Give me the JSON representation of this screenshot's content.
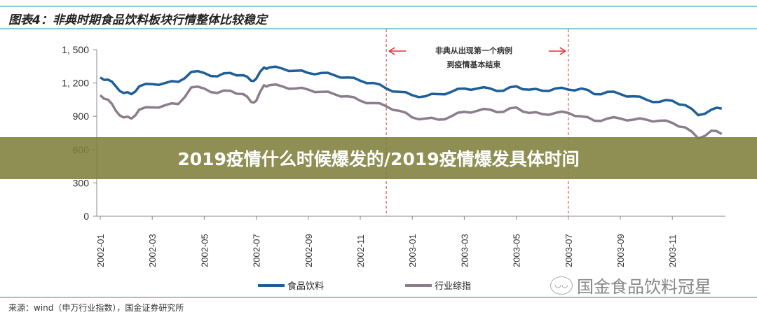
{
  "title": "图表4：非典时期食品饮料板块行情整体比较稳定",
  "banner": "2019疫情什么时候爆发的/2019疫情爆发具体时间",
  "source": "来源：wind（申万行业指数），国金证券研究所",
  "watermark": "国金食品饮料冠星",
  "chart_data": {
    "type": "line",
    "x_unit": "months since 2002-01",
    "xticks": [
      "2002-01",
      "2002-03",
      "2002-05",
      "2002-07",
      "2002-09",
      "2002-11",
      "2003-01",
      "2003-03",
      "2003-05",
      "2003-07",
      "2003-09",
      "2003-11"
    ],
    "yticks": [
      "0",
      "300",
      "600",
      "900",
      "1, 200",
      "1, 500"
    ],
    "ylim": [
      0,
      1500
    ],
    "annotation": {
      "line1": "非典从出现第一个病例",
      "line2": "到疫情基本结束",
      "start": "2002-12",
      "end": "2003-07"
    },
    "legend_position": "bottom",
    "series": [
      {
        "name": "食品饮料",
        "color": "#1f5f99",
        "x": [
          0,
          0.3,
          0.6,
          0.9,
          1.2,
          1.5,
          2,
          2.5,
          3,
          3.5,
          4,
          4.5,
          5,
          5.5,
          5.8,
          6,
          6.3,
          6.5,
          7,
          7.5,
          8,
          8.5,
          9,
          9.5,
          10,
          10.5,
          11,
          11.5,
          12,
          12.5,
          13,
          13.5,
          14,
          14.5,
          15,
          15.5,
          16,
          16.5,
          17,
          17.5,
          18,
          18.5,
          19,
          19.5,
          20,
          20.5,
          21,
          21.5,
          22,
          22.5,
          23,
          23.5,
          23.9
        ],
        "values": [
          1250,
          1230,
          1170,
          1110,
          1100,
          1170,
          1190,
          1200,
          1210,
          1300,
          1290,
          1260,
          1290,
          1270,
          1220,
          1240,
          1340,
          1340,
          1330,
          1310,
          1290,
          1290,
          1270,
          1250,
          1220,
          1200,
          1150,
          1120,
          1090,
          1080,
          1100,
          1120,
          1150,
          1150,
          1150,
          1130,
          1170,
          1140,
          1130,
          1150,
          1140,
          1150,
          1100,
          1120,
          1100,
          1080,
          1050,
          1030,
          1040,
          1000,
          910,
          960,
          970
        ]
      },
      {
        "name": "行业综指",
        "color": "#8c7d8c",
        "x": [
          0,
          0.3,
          0.6,
          0.9,
          1.2,
          1.5,
          2,
          2.5,
          3,
          3.5,
          4,
          4.5,
          5,
          5.5,
          5.8,
          6,
          6.3,
          6.5,
          7,
          7.5,
          8,
          8.5,
          9,
          9.5,
          10,
          10.5,
          11,
          11.5,
          12,
          12.5,
          13,
          13.5,
          14,
          14.5,
          15,
          15.5,
          16,
          16.5,
          17,
          17.5,
          18,
          18.5,
          19,
          19.5,
          20,
          20.5,
          21,
          21.5,
          22,
          22.5,
          23,
          23.5,
          23.9
        ],
        "values": [
          1090,
          1050,
          950,
          890,
          880,
          960,
          980,
          1000,
          1010,
          1160,
          1150,
          1110,
          1130,
          1100,
          1030,
          1040,
          1180,
          1180,
          1170,
          1150,
          1140,
          1120,
          1100,
          1080,
          1040,
          1020,
          990,
          950,
          890,
          880,
          870,
          900,
          940,
          950,
          960,
          940,
          980,
          930,
          920,
          930,
          930,
          900,
          860,
          880,
          880,
          870,
          870,
          860,
          840,
          800,
          700,
          770,
          740
        ]
      }
    ]
  }
}
